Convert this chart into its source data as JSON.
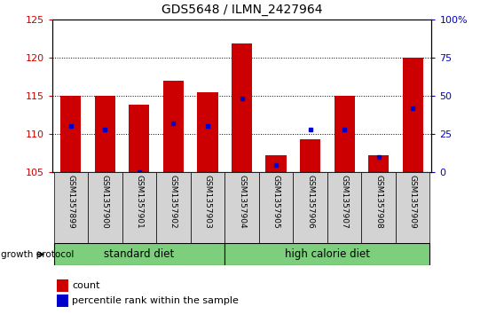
{
  "title": "GDS5648 / ILMN_2427964",
  "samples": [
    "GSM1357899",
    "GSM1357900",
    "GSM1357901",
    "GSM1357902",
    "GSM1357903",
    "GSM1357904",
    "GSM1357905",
    "GSM1357906",
    "GSM1357907",
    "GSM1357908",
    "GSM1357909"
  ],
  "count_values": [
    115.0,
    115.0,
    113.8,
    117.0,
    115.5,
    121.8,
    107.2,
    109.3,
    115.0,
    107.2,
    120.0
  ],
  "percentile_values": [
    30,
    28,
    0,
    32,
    30,
    48,
    5,
    28,
    28,
    10,
    42
  ],
  "ylim_left": [
    105,
    125
  ],
  "ylim_right": [
    0,
    100
  ],
  "yticks_left": [
    105,
    110,
    115,
    120,
    125
  ],
  "yticks_right": [
    0,
    25,
    50,
    75,
    100
  ],
  "bar_color": "#cc0000",
  "dot_color": "#0000cc",
  "bar_bottom": 105,
  "group_defs": [
    {
      "start": 0,
      "end": 4,
      "label": "standard diet"
    },
    {
      "start": 5,
      "end": 10,
      "label": "high calorie diet"
    }
  ],
  "group_label": "growth protocol",
  "left_color": "#cc0000",
  "right_color": "#0000cc",
  "tick_area_color": "#d3d3d3",
  "green_color": "#7dcf7d",
  "legend_items": [
    {
      "label": "count",
      "color": "#cc0000"
    },
    {
      "label": "percentile rank within the sample",
      "color": "#0000cc"
    }
  ]
}
